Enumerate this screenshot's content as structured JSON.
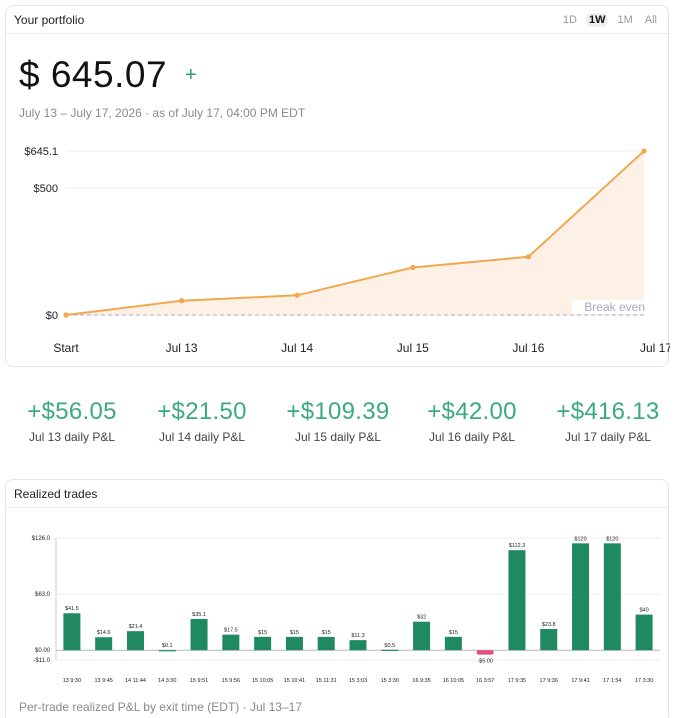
{
  "portfolio": {
    "title": "Your portfolio",
    "ranges": [
      {
        "label": "1D",
        "active": false
      },
      {
        "label": "1W",
        "active": true
      },
      {
        "label": "1M",
        "active": false
      },
      {
        "label": "All",
        "active": false
      }
    ],
    "value": "$ 645.07",
    "plus_sign": "+",
    "subline": "July 13 – July 17, 2026 · as of July 17, 04:00 PM EDT"
  },
  "chart_data": [
    {
      "type": "area",
      "x": [
        "Start",
        "Jul 13",
        "Jul 14",
        "Jul 15",
        "Jul 16",
        "Jul 17"
      ],
      "values": [
        0,
        56.05,
        77.55,
        186.94,
        228.94,
        645.07
      ],
      "ylim": [
        0,
        645.1
      ],
      "y_ticks": [
        0,
        500,
        645.1
      ],
      "y_tick_labels": [
        "$0",
        "$500",
        "$645.1"
      ],
      "reference_line": {
        "value": 0,
        "label": "Break even"
      },
      "colors": {
        "line": "#f0a850",
        "fill": "#fdf1e6",
        "reference": "#a7a8c9"
      },
      "grid": true
    },
    {
      "type": "bar",
      "categories": [
        "13 9:30",
        "13 9:45",
        "14 11:44",
        "14 3:30",
        "15 9:51",
        "15 9:56",
        "15 10:05",
        "15 10:41",
        "15 11:31",
        "15 3:03",
        "15 3:30",
        "16 9:35",
        "16 10:05",
        "16 3:57",
        "17 9:35",
        "17 9:36",
        "17 9:41",
        "17 1:54",
        "17 3:30"
      ],
      "values": [
        41.5,
        14.6,
        21.4,
        0.1,
        35.1,
        17.5,
        15,
        15,
        15,
        11.3,
        0.5,
        32,
        15,
        -5,
        112.3,
        23.8,
        120,
        120,
        40
      ],
      "value_labels": [
        "$41.5",
        "$14.6",
        "$21.4",
        "$0.1",
        "$35.1",
        "$17.5",
        "$15",
        "$15",
        "$15",
        "$11.3",
        "$0.5",
        "$32",
        "$15",
        "-$5.00",
        "$112.3",
        "$23.8",
        "$120",
        "$120",
        "$40"
      ],
      "ylim": [
        -11,
        126
      ],
      "y_ticks": [
        -11,
        0,
        63,
        126
      ],
      "y_tick_labels": [
        "-$11.0",
        "$0.00",
        "$63.0",
        "$126.0"
      ],
      "colors": {
        "positive": "#1f8a5f",
        "negative": "#e0507a"
      },
      "grid": true
    }
  ],
  "daily_pnl": [
    {
      "amount": "+$56.05",
      "label": "Jul 13 daily P&L"
    },
    {
      "amount": "+$21.50",
      "label": "Jul 14 daily P&L"
    },
    {
      "amount": "+$109.39",
      "label": "Jul 15 daily P&L"
    },
    {
      "amount": "+$42.00",
      "label": "Jul 16 daily P&L"
    },
    {
      "amount": "+$416.13",
      "label": "Jul 17 daily P&L"
    }
  ],
  "trades": {
    "title": "Realized trades",
    "caption": "Per-trade realized P&L by exit time (EDT) · Jul 13–17"
  }
}
